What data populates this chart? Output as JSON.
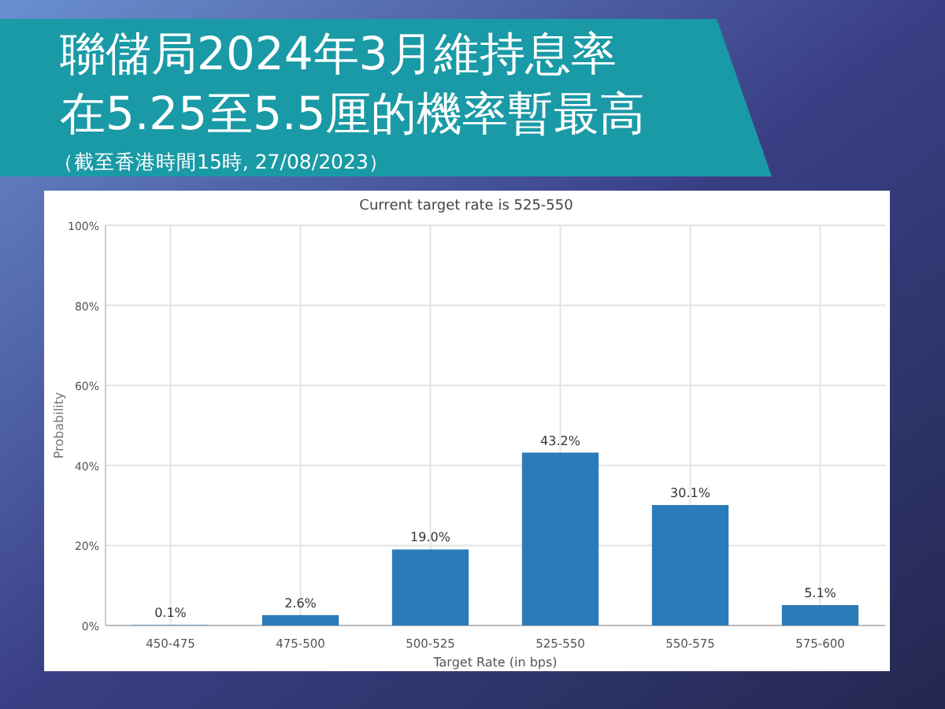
{
  "chart_data": {
    "type": "bar",
    "title": "聯儲局2024年3月維持息率在5.25至5.5厘的機率暫最高",
    "subtitle": "（截至香港時間15時, 27/08/2023）",
    "annotations": [
      "Current target rate is 525-550"
    ],
    "xlabel": "Target Rate (in bps)",
    "ylabel": "Probability",
    "categories": [
      "450-475",
      "475-500",
      "500-525",
      "525-550",
      "550-575",
      "575-600"
    ],
    "values": [
      0.1,
      2.6,
      19.0,
      43.2,
      30.1,
      5.1
    ],
    "value_labels": [
      "0.1%",
      "2.6%",
      "19.0%",
      "43.2%",
      "30.1%",
      "5.1%"
    ],
    "color": "#2a7bb8",
    "ylim": [
      0,
      100
    ],
    "yticks": [
      {
        "value": 0,
        "label": "0%"
      },
      {
        "value": 20,
        "label": "20%"
      },
      {
        "value": 40,
        "label": "40%"
      },
      {
        "value": 60,
        "label": "60%"
      },
      {
        "value": 80,
        "label": "80%"
      },
      {
        "value": 100,
        "label": "100%"
      }
    ],
    "grid": true
  }
}
